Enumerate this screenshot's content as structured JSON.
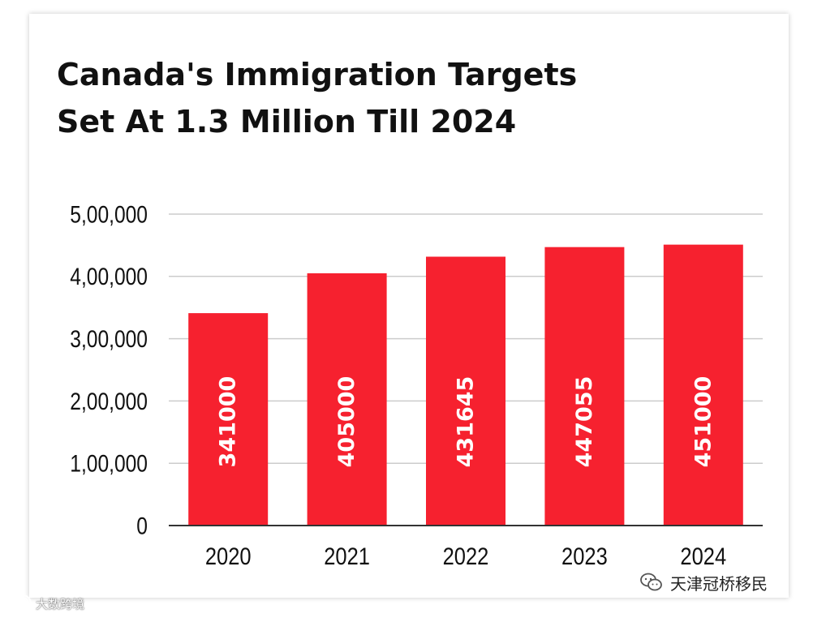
{
  "chart_data": {
    "type": "bar",
    "title_lines": [
      "Canada's Immigration Targets",
      "Set At 1.3 Million Till 2024"
    ],
    "categories": [
      "2020",
      "2021",
      "2022",
      "2023",
      "2024"
    ],
    "values": [
      341000,
      405000,
      431645,
      447055,
      451000
    ],
    "data_labels": [
      "341000",
      "405000",
      "431645",
      "447055",
      "451000"
    ],
    "ylim": [
      0,
      500000
    ],
    "y_ticks": [
      0,
      100000,
      200000,
      300000,
      400000,
      500000
    ],
    "y_tick_labels": [
      "0",
      "1,00,000",
      "2,00,000",
      "3,00,000",
      "4,00,000",
      "5,00,000"
    ],
    "xlabel": "",
    "ylabel": "",
    "grid": true,
    "bar_color": "#f6212f",
    "grid_color": "#cccccc",
    "axis_color": "#333333"
  },
  "watermarks": {
    "left_text": "大数跨境",
    "right_text": "天津冠桥移民",
    "left_icon": "weibo-icon",
    "right_icon": "wechat-icon"
  }
}
